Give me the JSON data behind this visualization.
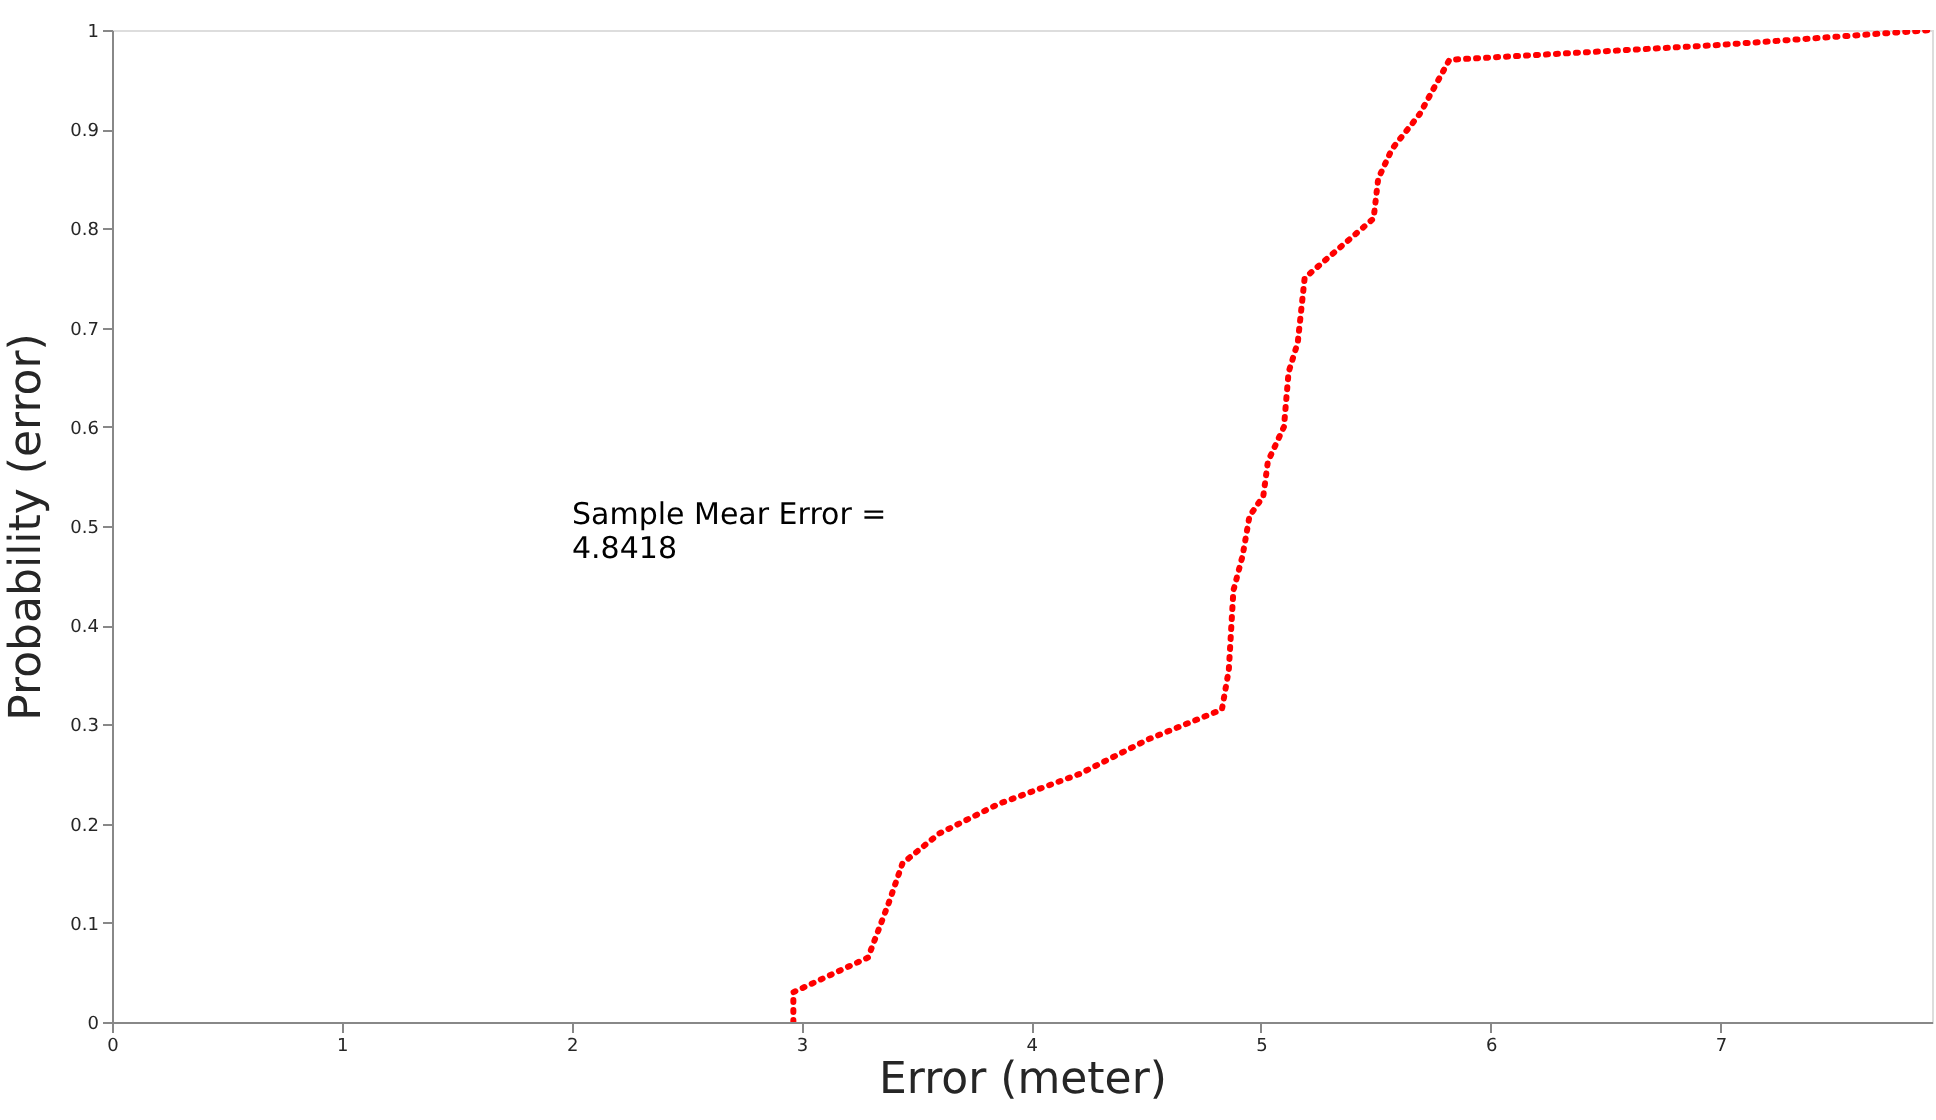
{
  "chart_data": {
    "type": "line",
    "xlabel": "Error (meter)",
    "ylabel": "Probability (error)",
    "x": [
      2.965,
      2.965,
      3.29,
      3.38,
      3.44,
      3.6,
      3.86,
      4.21,
      4.51,
      4.83,
      4.86,
      4.88,
      4.92,
      4.95,
      5.01,
      5.03,
      5.1,
      5.12,
      5.16,
      5.19,
      5.34,
      5.49,
      5.51,
      5.57,
      5.69,
      5.82,
      7.0,
      7.92
    ],
    "series": [
      {
        "color": "#ff0000",
        "values": [
          0,
          0.03,
          0.065,
          0.12,
          0.16,
          0.19,
          0.22,
          0.25,
          0.285,
          0.315,
          0.355,
          0.435,
          0.47,
          0.51,
          0.53,
          0.565,
          0.6,
          0.655,
          0.685,
          0.75,
          0.78,
          0.81,
          0.85,
          0.88,
          0.915,
          0.97,
          0.985,
          1
        ]
      }
    ],
    "xlim": [
      0,
      7.92
    ],
    "xticks": [
      0,
      1,
      2,
      3,
      4,
      5,
      6,
      7
    ],
    "ylim": [
      0,
      1
    ],
    "yticks": [
      0,
      0.1,
      0.2,
      0.3,
      0.4,
      0.5,
      0.6,
      0.7,
      0.8,
      0.9,
      1
    ],
    "grid": false,
    "marker": "none",
    "line_style": "dotted",
    "annotations": [
      "Sample Mear Error =\n4.8418"
    ]
  }
}
